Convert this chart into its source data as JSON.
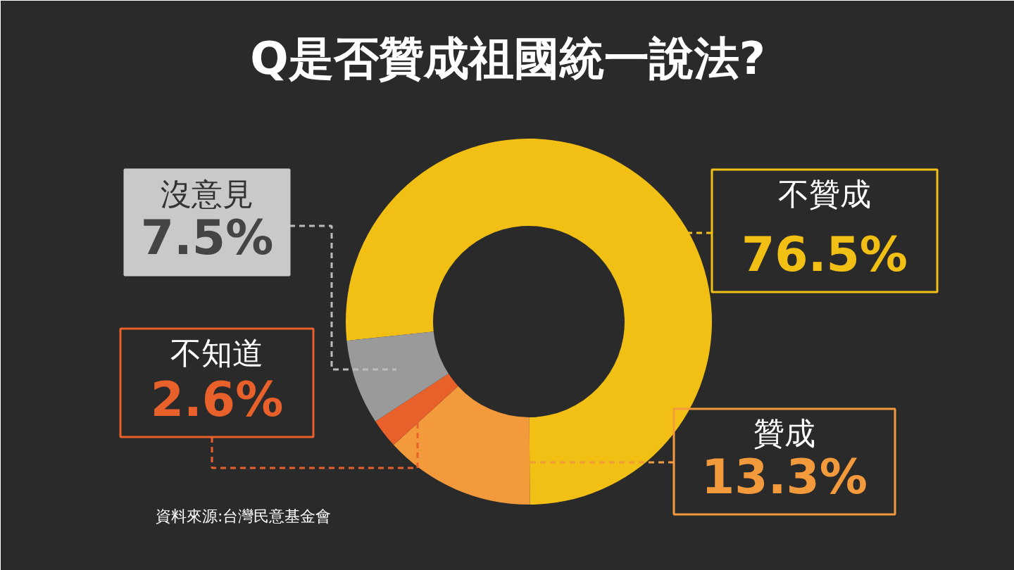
{
  "chart_data": {
    "type": "donut",
    "title": "Q是否贊成祖國統一說法?",
    "categories": [
      "不贊成",
      "贊成",
      "不知道",
      "沒意見"
    ],
    "values": [
      76.5,
      13.3,
      2.6,
      7.5
    ],
    "colors": [
      "#f2c014",
      "#f39a3c",
      "#e8602a",
      "#9a9a9a"
    ],
    "value_labels": [
      "76.5%",
      "13.3%",
      "2.6%",
      "7.5%"
    ],
    "annotations": [
      "資料來源:台灣民意基金會"
    ]
  }
}
